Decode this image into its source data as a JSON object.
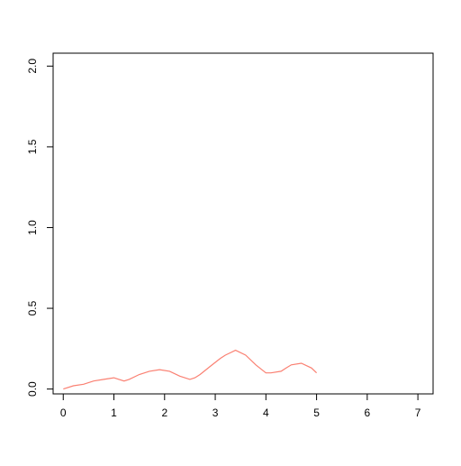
{
  "chart_data": {
    "type": "line",
    "title": "",
    "xlabel": "",
    "ylabel": "",
    "xlim": [
      -0.2,
      7.3
    ],
    "ylim": [
      -0.03,
      2.08
    ],
    "x_ticks": [
      0,
      1,
      2,
      3,
      4,
      5,
      6,
      7
    ],
    "x_tick_labels": [
      "0",
      "1",
      "2",
      "3",
      "4",
      "5",
      "6",
      "7"
    ],
    "y_ticks": [
      0.0,
      0.5,
      1.0,
      1.5,
      2.0
    ],
    "y_tick_labels": [
      "0.0",
      "0.5",
      "1.0",
      "1.5",
      "2.0"
    ],
    "grid": false,
    "legend": "none",
    "series": [
      {
        "color": "#fa8072",
        "x": [
          0.0,
          0.2,
          0.4,
          0.6,
          0.8,
          1.0,
          1.1,
          1.2,
          1.3,
          1.5,
          1.7,
          1.9,
          2.1,
          2.3,
          2.5,
          2.6,
          2.7,
          2.9,
          3.1,
          3.2,
          3.4,
          3.6,
          3.8,
          4.0,
          4.1,
          4.3,
          4.4,
          4.5,
          4.7,
          4.9,
          5.0
        ],
        "y": [
          0.0,
          0.02,
          0.03,
          0.05,
          0.06,
          0.07,
          0.06,
          0.05,
          0.06,
          0.09,
          0.11,
          0.12,
          0.11,
          0.08,
          0.06,
          0.07,
          0.09,
          0.14,
          0.19,
          0.21,
          0.24,
          0.21,
          0.15,
          0.1,
          0.1,
          0.11,
          0.13,
          0.15,
          0.16,
          0.13,
          0.1
        ]
      }
    ]
  }
}
